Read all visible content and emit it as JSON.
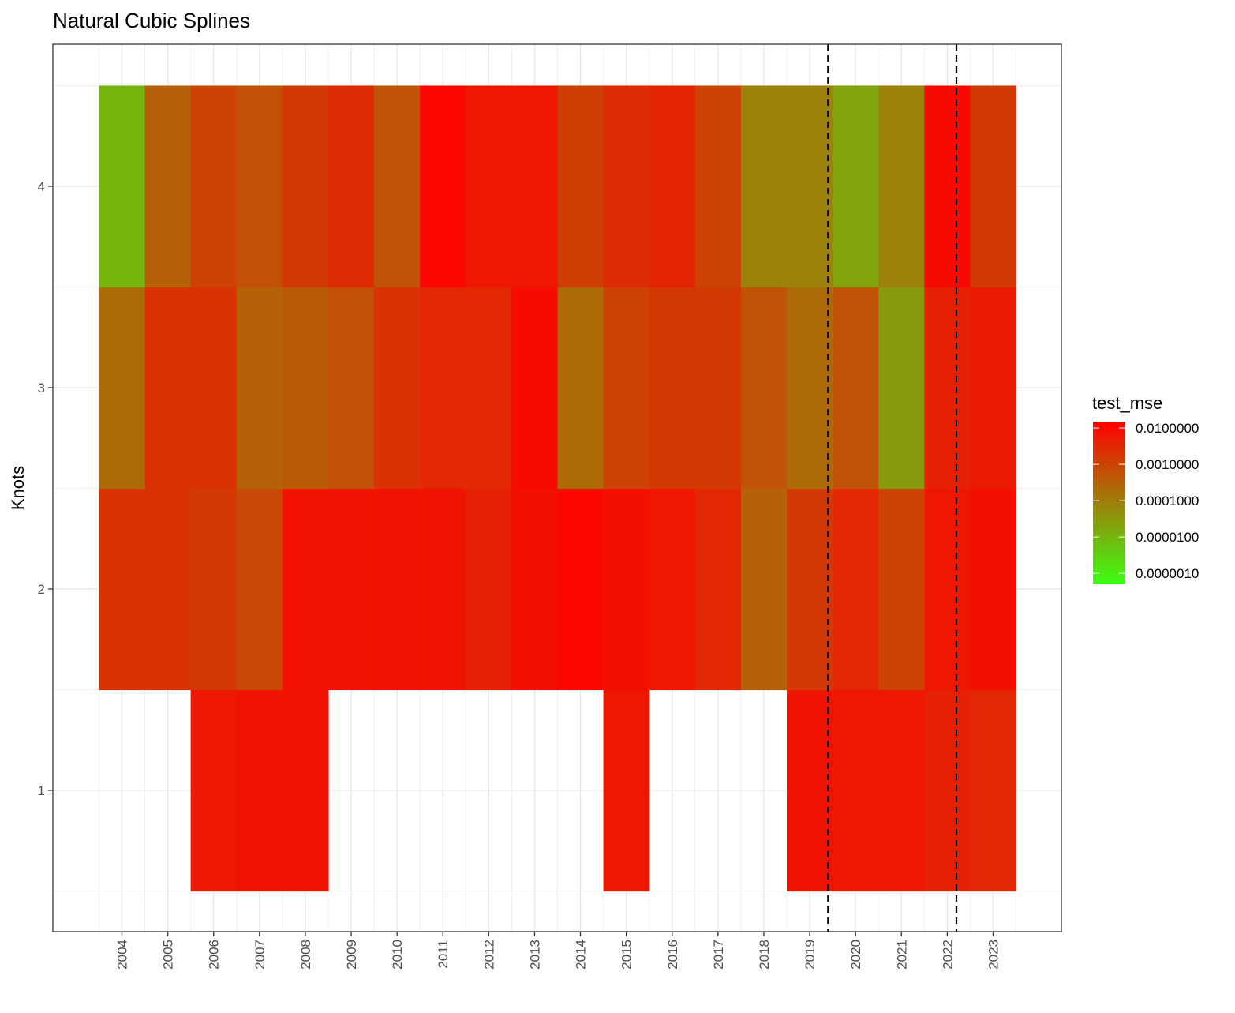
{
  "chart_data": {
    "type": "heatmap",
    "title": "Natural Cubic Splines",
    "xlabel": "",
    "ylabel": "Knots",
    "x": [
      "2004",
      "2005",
      "2006",
      "2007",
      "2008",
      "2009",
      "2010",
      "2011",
      "2012",
      "2013",
      "2014",
      "2015",
      "2016",
      "2017",
      "2018",
      "2019",
      "2020",
      "2021",
      "2022",
      "2023"
    ],
    "y": [
      1,
      2,
      3,
      4
    ],
    "values": [
      [
        null,
        null,
        0.006,
        0.007,
        0.007,
        null,
        null,
        null,
        null,
        null,
        null,
        0.006,
        null,
        null,
        null,
        0.007,
        0.006,
        0.006,
        0.004,
        0.003
      ],
      [
        0.002,
        0.002,
        0.0015,
        0.0008,
        0.007,
        0.007,
        0.007,
        0.007,
        0.004,
        0.008,
        0.012,
        0.008,
        0.006,
        0.003,
        0.0003,
        0.0015,
        0.003,
        0.001,
        0.006,
        0.008
      ],
      [
        0.0002,
        0.002,
        0.002,
        0.0003,
        0.0004,
        0.0006,
        0.002,
        0.003,
        0.003,
        0.01,
        0.0002,
        0.001,
        0.0015,
        0.0015,
        0.0005,
        0.0002,
        0.0005,
        3e-05,
        0.004,
        0.005
      ],
      [
        1e-05,
        0.0003,
        0.001,
        0.0006,
        0.0015,
        0.0025,
        0.0005,
        0.012,
        0.006,
        0.006,
        0.0012,
        0.0025,
        0.0035,
        0.001,
        8e-05,
        8e-05,
        2e-05,
        8e-05,
        0.01,
        0.0015
      ]
    ],
    "ylim": [
      0.5,
      4.5
    ],
    "vlines": [
      2019.4,
      2022.2
    ],
    "grid": true,
    "legend": {
      "title": "test_mse",
      "placement": "right",
      "scale": "log10",
      "range": [
        5e-07,
        0.015
      ],
      "labels": [
        "0.0100000",
        "0.0010000",
        "0.0001000",
        "0.0000100",
        "0.0000010"
      ],
      "label_values": [
        0.01,
        0.001,
        0.0001,
        1e-05,
        1e-06
      ],
      "low_color": "#3cff14",
      "high_color": "#ff0000"
    }
  }
}
